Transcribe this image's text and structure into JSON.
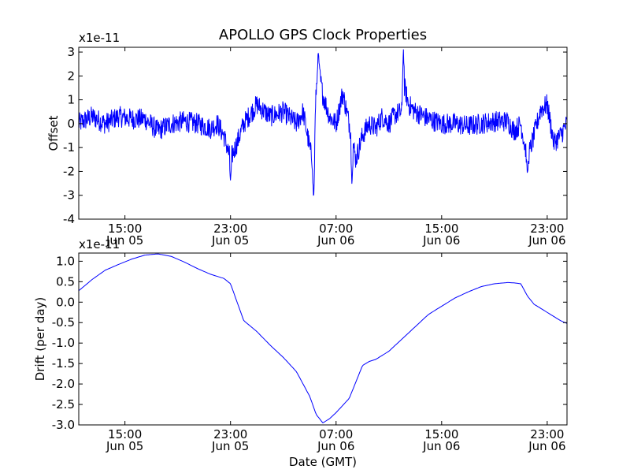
{
  "chart_data": [
    {
      "type": "line",
      "title": "APOLLO GPS Clock Properties",
      "ylabel": "Offset",
      "xlabel": "",
      "y_scale_label": "x1e-11",
      "ylim": [
        -4,
        3.2
      ],
      "yticks": [
        "-4",
        "-3",
        "-2",
        "-1",
        "0",
        "1",
        "2",
        "3"
      ],
      "ytick_values": [
        -4,
        -3,
        -2,
        -1,
        0,
        1,
        2,
        3
      ],
      "xlim_hours": [
        11.5,
        48.5
      ],
      "xticks": [
        {
          "hour": 15,
          "time": "15:00",
          "date": "Jun 05"
        },
        {
          "hour": 23,
          "time": "23:00",
          "date": "Jun 05"
        },
        {
          "hour": 31,
          "time": "07:00",
          "date": "Jun 06"
        },
        {
          "hour": 39,
          "time": "15:00",
          "date": "Jun 06"
        },
        {
          "hour": 47,
          "time": "23:00",
          "date": "Jun 06"
        }
      ],
      "line_color": "#0000ff",
      "series": [
        {
          "name": "Offset",
          "x_hours": [
            11.5,
            12.5,
            13.5,
            14.5,
            15.5,
            16.5,
            17.5,
            18.5,
            19.5,
            20.5,
            21.5,
            22.0,
            22.5,
            23.0,
            23.5,
            24.0,
            25.0,
            26.0,
            27.0,
            28.0,
            28.5,
            29.0,
            29.3,
            29.5,
            29.7,
            30.0,
            30.5,
            31.0,
            31.5,
            32.0,
            32.5,
            33.0,
            33.5,
            34.0,
            34.5,
            35.0,
            35.5,
            36.0,
            36.2,
            36.5,
            37.0,
            38.0,
            39.0,
            40.0,
            41.0,
            42.0,
            43.0,
            44.0,
            44.5,
            45.0,
            45.5,
            46.0,
            46.5,
            47.0,
            47.5,
            48.0,
            48.5
          ],
          "values": [
            0.0,
            0.3,
            0.0,
            0.3,
            0.2,
            0.2,
            -0.3,
            0.0,
            0.1,
            0.0,
            -0.2,
            0.0,
            -0.5,
            -1.5,
            -0.8,
            0.0,
            0.8,
            0.3,
            0.5,
            0.0,
            0.5,
            -1.0,
            -1.8,
            1.5,
            2.2,
            1.2,
            0.3,
            0.0,
            1.3,
            0.0,
            -1.5,
            -0.5,
            0.0,
            -0.2,
            0.3,
            0.0,
            0.4,
            0.5,
            1.5,
            0.8,
            0.5,
            0.2,
            0.0,
            0.0,
            -0.1,
            0.0,
            0.1,
            0.1,
            -0.3,
            0.0,
            -1.5,
            -0.5,
            0.6,
            0.8,
            -0.8,
            -0.5,
            0.0
          ],
          "spikes": [
            {
              "x_hour": 29.3,
              "value": -3.15
            },
            {
              "x_hour": 29.65,
              "value": 3.0
            },
            {
              "x_hour": 32.2,
              "value": -2.6
            },
            {
              "x_hour": 36.1,
              "value": 3.2
            },
            {
              "x_hour": 23.0,
              "value": -2.4
            },
            {
              "x_hour": 45.5,
              "value": -2.1
            }
          ],
          "noise_amplitude": 0.45
        }
      ]
    },
    {
      "type": "line",
      "title": "",
      "ylabel": "Drift (per day)",
      "xlabel": "Date (GMT)",
      "y_scale_label": "x1e-11",
      "ylim": [
        -3.0,
        1.2
      ],
      "yticks": [
        "-3.0",
        "-2.5",
        "-2.0",
        "-1.5",
        "-1.0",
        "-0.5",
        "0.0",
        "0.5",
        "1.0"
      ],
      "ytick_values": [
        -3.0,
        -2.5,
        -2.0,
        -1.5,
        -1.0,
        -0.5,
        0.0,
        0.5,
        1.0
      ],
      "xlim_hours": [
        11.5,
        48.5
      ],
      "xticks": [
        {
          "hour": 15,
          "time": "15:00",
          "date": "Jun 05"
        },
        {
          "hour": 23,
          "time": "23:00",
          "date": "Jun 05"
        },
        {
          "hour": 31,
          "time": "07:00",
          "date": "Jun 06"
        },
        {
          "hour": 39,
          "time": "15:00",
          "date": "Jun 06"
        },
        {
          "hour": 47,
          "time": "23:00",
          "date": "Jun 06"
        }
      ],
      "line_color": "#0000ff",
      "series": [
        {
          "name": "Drift",
          "x_hours": [
            11.5,
            12.5,
            13.5,
            14.5,
            15.5,
            16.5,
            17.5,
            18.5,
            19.5,
            20.5,
            21.5,
            22.5,
            23.0,
            23.5,
            24.0,
            25.0,
            26.0,
            27.0,
            28.0,
            29.0,
            29.5,
            30.0,
            30.5,
            31.0,
            32.0,
            33.0,
            33.5,
            34.0,
            35.0,
            36.0,
            37.0,
            38.0,
            39.0,
            40.0,
            41.0,
            42.0,
            43.0,
            44.0,
            44.5,
            45.0,
            45.5,
            46.0,
            47.0,
            48.0,
            48.5
          ],
          "values": [
            0.28,
            0.55,
            0.78,
            0.92,
            1.05,
            1.15,
            1.18,
            1.12,
            0.98,
            0.82,
            0.68,
            0.58,
            0.45,
            0.0,
            -0.45,
            -0.72,
            -1.05,
            -1.35,
            -1.7,
            -2.3,
            -2.75,
            -2.95,
            -2.85,
            -2.7,
            -2.35,
            -1.55,
            -1.45,
            -1.4,
            -1.2,
            -0.9,
            -0.6,
            -0.3,
            -0.1,
            0.1,
            0.25,
            0.38,
            0.45,
            0.48,
            0.47,
            0.45,
            0.15,
            -0.05,
            -0.25,
            -0.45,
            -0.52
          ]
        }
      ]
    }
  ]
}
